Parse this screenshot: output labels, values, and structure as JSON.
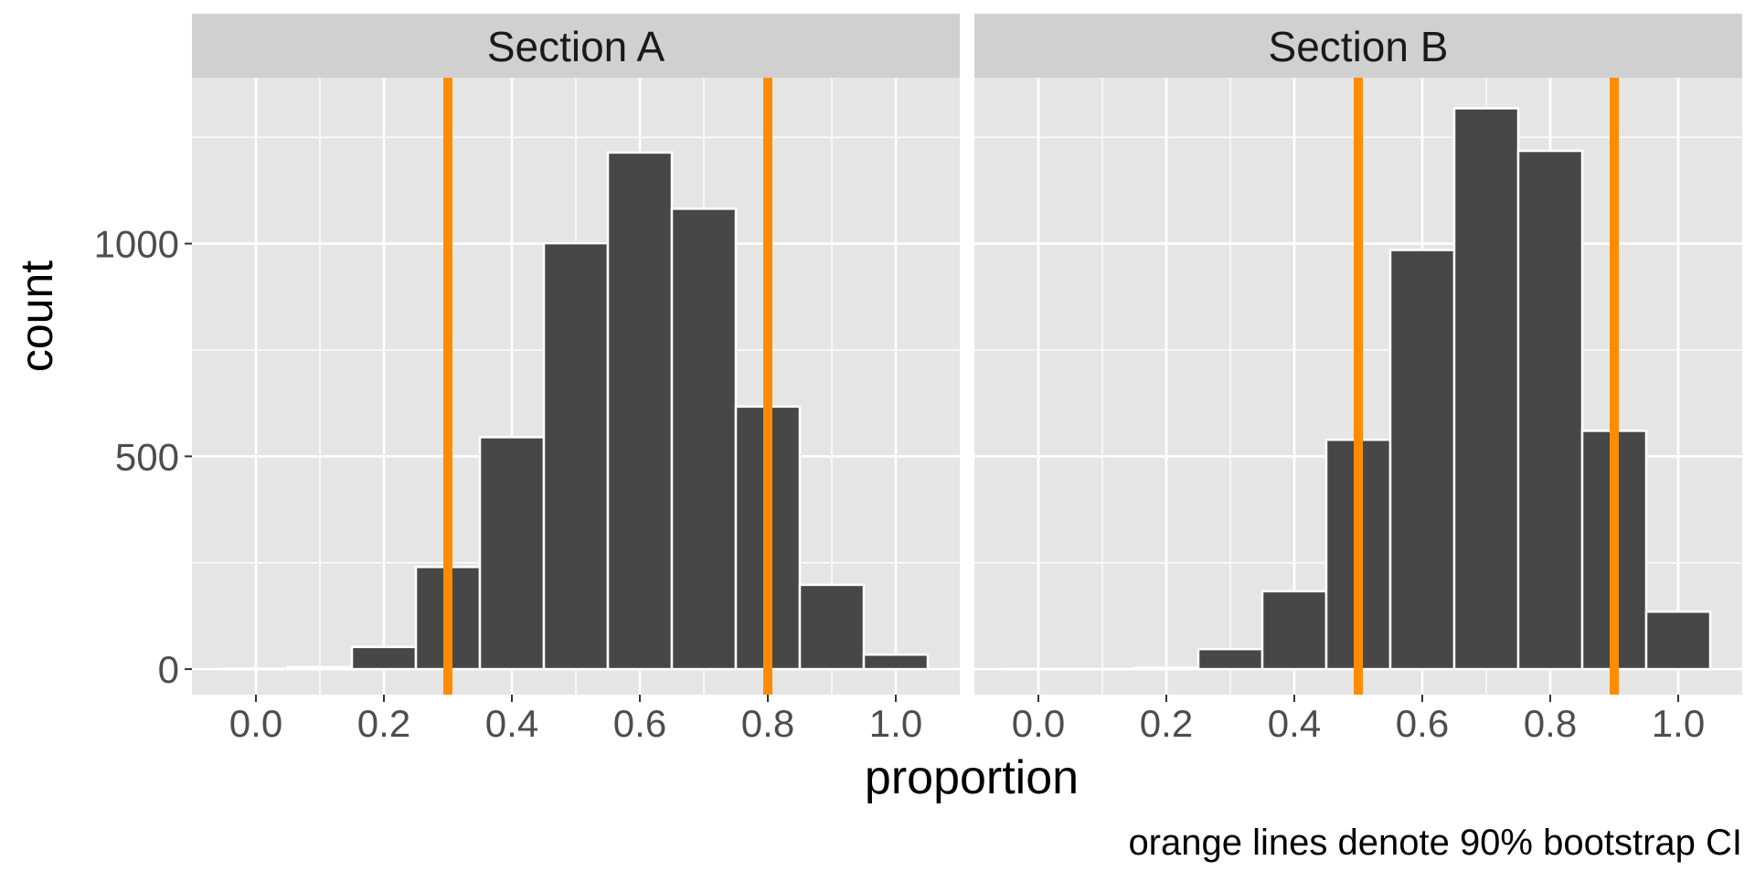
{
  "chart_data": {
    "type": "bar",
    "subtype": "faceted-histogram",
    "xlabel": "proportion",
    "ylabel": "count",
    "caption": "orange lines denote 90% bootstrap CI",
    "x_ticks": [
      0.0,
      0.2,
      0.4,
      0.6,
      0.8,
      1.0
    ],
    "x_tick_labels": [
      "0.0",
      "0.2",
      "0.4",
      "0.6",
      "0.8",
      "1.0"
    ],
    "y_ticks": [
      0,
      500,
      1000
    ],
    "y_tick_labels": [
      "0",
      "500",
      "1000"
    ],
    "xlim": [
      -0.1,
      1.1
    ],
    "ylim": [
      -60,
      1390
    ],
    "bin_width": 0.1,
    "grid": true,
    "colors": {
      "panel_background": "#e5e5e5",
      "strip_background": "#d0d0d0",
      "grid": "#ffffff",
      "bar_fill": "#474747",
      "bar_outline": "#ffffff",
      "ci_line": "#ff8c00",
      "tick_label": "#4d4d4d",
      "axis_title": "#000000"
    },
    "facets": [
      {
        "name": "Section A",
        "bin_centers": [
          0.0,
          0.1,
          0.2,
          0.3,
          0.4,
          0.5,
          0.6,
          0.7,
          0.8,
          0.9,
          1.0
        ],
        "counts": [
          1,
          5,
          52,
          240,
          545,
          1001,
          1214,
          1082,
          617,
          198,
          34
        ],
        "ci": [
          0.3,
          0.8
        ]
      },
      {
        "name": "Section B",
        "bin_centers": [
          0.0,
          0.1,
          0.2,
          0.3,
          0.4,
          0.5,
          0.6,
          0.7,
          0.8,
          0.9,
          1.0
        ],
        "counts": [
          0,
          0,
          3,
          47,
          183,
          539,
          985,
          1318,
          1218,
          560,
          135
        ],
        "ci": [
          0.5,
          0.9
        ]
      }
    ]
  }
}
